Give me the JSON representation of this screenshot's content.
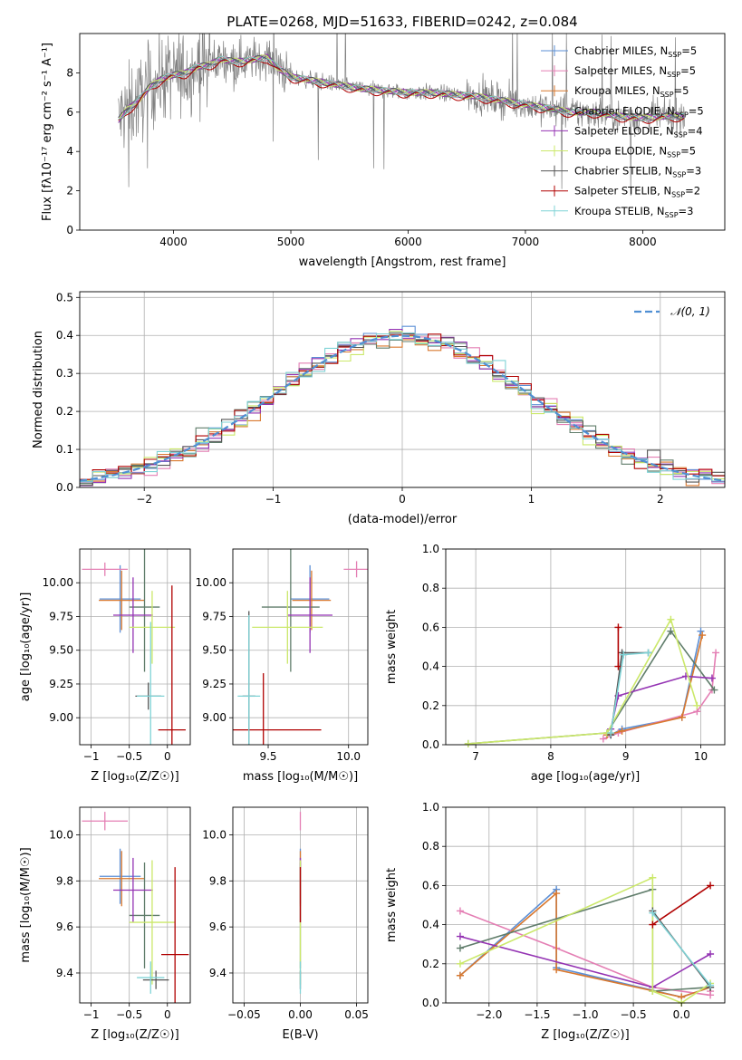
{
  "colors": {
    "chabrier_miles": "#5b8fd6",
    "salpeter_miles": "#e47fb4",
    "kroupa_miles": "#d9782e",
    "chabrier_elodie": "#607d6b",
    "salpeter_elodie": "#9433b3",
    "kroupa_elodie": "#cbe86a",
    "chabrier_stelib": "#555555",
    "salpeter_stelib": "#b00000",
    "kroupa_stelib": "#7fd3d6",
    "data": "#808080",
    "normal": "#4f8fd3",
    "grid": "#b0b0b0"
  },
  "chart_data": [
    {
      "id": "spectrum",
      "type": "line",
      "title": "PLATE=0268, MJD=51633, FIBERID=0242, z=0.084",
      "xlabel": "wavelength [Angstrom, rest frame]",
      "ylabel": "Flux [fλ10⁻¹⁷ erg cm⁻² s⁻¹ A⁻¹]",
      "xlim": [
        3200,
        8700
      ],
      "ylim": [
        0,
        10
      ],
      "xticks": [
        4000,
        5000,
        6000,
        7000,
        8000
      ],
      "yticks": [
        0,
        2,
        4,
        6,
        8
      ],
      "grid": false,
      "legend_position": "top-right",
      "legend": [
        {
          "label": "Chabrier MILES, N_SSP=5",
          "color": "chabrier_miles"
        },
        {
          "label": "Salpeter MILES, N_SSP=5",
          "color": "salpeter_miles"
        },
        {
          "label": "Kroupa MILES, N_SSP=5",
          "color": "kroupa_miles"
        },
        {
          "label": "Chabrier ELODIE, N_SSP=5",
          "color": "chabrier_elodie"
        },
        {
          "label": "Salpeter ELODIE, N_SSP=4",
          "color": "salpeter_elodie"
        },
        {
          "label": "Kroupa ELODIE, N_SSP=5",
          "color": "kroupa_elodie"
        },
        {
          "label": "Chabrier STELIB, N_SSP=3",
          "color": "chabrier_stelib"
        },
        {
          "label": "Salpeter STELIB, N_SSP=2",
          "color": "salpeter_stelib"
        },
        {
          "label": "Kroupa STELIB, N_SSP=3",
          "color": "kroupa_stelib"
        }
      ],
      "continuum": {
        "x": [
          3530,
          3600,
          3700,
          3800,
          3900,
          4000,
          4100,
          4200,
          4300,
          4400,
          4500,
          4600,
          4700,
          4800,
          4900,
          5000,
          5200,
          5400,
          5600,
          5800,
          6000,
          6200,
          6400,
          6600,
          6800,
          7000,
          7200,
          7400,
          7600,
          7800,
          8000,
          8200,
          8350
        ],
        "y": [
          5.6,
          6.1,
          6.6,
          7.3,
          7.7,
          7.9,
          8.0,
          8.3,
          8.4,
          8.7,
          8.6,
          8.6,
          8.7,
          8.8,
          8.2,
          7.8,
          7.6,
          7.4,
          7.2,
          7.1,
          7.0,
          7.0,
          6.9,
          6.8,
          6.6,
          6.4,
          6.2,
          6.0,
          6.0,
          5.8,
          5.7,
          5.8,
          5.8
        ]
      }
    },
    {
      "id": "residuals",
      "type": "step",
      "xlabel": "(data-model)/error",
      "ylabel": "Normed distribution",
      "xlim": [
        -2.5,
        2.5
      ],
      "ylim": [
        0,
        0.515
      ],
      "xticks": [
        -2,
        -1,
        0,
        1,
        2
      ],
      "yticks": [
        0.0,
        0.1,
        0.2,
        0.3,
        0.4,
        0.5
      ],
      "grid": true,
      "legend_position": "top-right",
      "normal_label": "𝒩(0, 1)",
      "bins": {
        "start": -2.5,
        "width": 0.1
      }
    },
    {
      "id": "age-vs-z",
      "type": "errorbar",
      "xlabel": "Z [log₁₀(Z/Z☉)]",
      "ylabel": "age  [log₁₀(age/yr)]",
      "xlim": [
        -1.15,
        0.3
      ],
      "ylim": [
        8.8,
        10.25
      ],
      "xticks": [
        -1,
        -0.5,
        0
      ],
      "yticks": [
        9.0,
        9.25,
        9.5,
        9.75,
        10.0
      ],
      "grid": true,
      "points": [
        {
          "series": "chabrier_miles",
          "x": -0.62,
          "xerr": 0.27,
          "y": 9.88,
          "yerr": 0.25
        },
        {
          "series": "salpeter_miles",
          "x": -0.82,
          "xerr": 0.3,
          "y": 10.1,
          "yerr": 0.05
        },
        {
          "series": "kroupa_miles",
          "x": -0.6,
          "xerr": 0.3,
          "y": 9.87,
          "yerr": 0.22
        },
        {
          "series": "chabrier_elodie",
          "x": -0.3,
          "xerr": 0.2,
          "y": 9.82,
          "yerr": 0.48
        },
        {
          "series": "salpeter_elodie",
          "x": -0.45,
          "xerr": 0.26,
          "y": 9.76,
          "yerr": 0.28
        },
        {
          "series": "kroupa_elodie",
          "x": -0.2,
          "xerr": 0.3,
          "y": 9.67,
          "yerr": 0.27
        },
        {
          "series": "chabrier_stelib",
          "x": -0.25,
          "xerr": 0.17,
          "y": 9.16,
          "yerr": 0.1
        },
        {
          "series": "salpeter_stelib",
          "x": 0.06,
          "xerr": 0.18,
          "y": 8.91,
          "yerr": 1.07
        },
        {
          "series": "kroupa_stelib",
          "x": -0.22,
          "xerr": 0.18,
          "y": 9.16,
          "yerr": 0.55
        }
      ]
    },
    {
      "id": "age-vs-mass",
      "type": "errorbar",
      "xlabel": "mass [log₁₀(M/M☉)]",
      "ylabel": "",
      "xlim": [
        9.28,
        10.12
      ],
      "ylim": [
        8.8,
        10.25
      ],
      "xticks": [
        9.5,
        10.0
      ],
      "yticks": [
        9.0,
        9.25,
        9.5,
        9.75,
        10.0
      ],
      "grid": true,
      "points": [
        {
          "series": "chabrier_miles",
          "x": 9.76,
          "xerr": 0.12,
          "y": 9.88,
          "yerr": 0.25
        },
        {
          "series": "salpeter_miles",
          "x": 10.05,
          "xerr": 0.08,
          "y": 10.1,
          "yerr": 0.06
        },
        {
          "series": "kroupa_miles",
          "x": 9.77,
          "xerr": 0.12,
          "y": 9.87,
          "yerr": 0.22
        },
        {
          "series": "chabrier_elodie",
          "x": 9.64,
          "xerr": 0.18,
          "y": 9.82,
          "yerr": 0.48
        },
        {
          "series": "salpeter_elodie",
          "x": 9.76,
          "xerr": 0.14,
          "y": 9.76,
          "yerr": 0.28
        },
        {
          "series": "kroupa_elodie",
          "x": 9.62,
          "xerr": 0.22,
          "y": 9.67,
          "yerr": 0.27
        },
        {
          "series": "chabrier_stelib",
          "x": 9.38,
          "xerr": 0.04,
          "y": 9.16,
          "yerr": 0.63
        },
        {
          "series": "salpeter_stelib",
          "x": 9.47,
          "xerr": 0.36,
          "y": 8.91,
          "yerr": 0.42
        },
        {
          "series": "kroupa_stelib",
          "x": 9.38,
          "xerr": 0.07,
          "y": 9.16,
          "yerr": 0.6
        }
      ]
    },
    {
      "id": "weight-vs-age",
      "type": "line",
      "xlabel": "age  [log₁₀(age/yr)]",
      "ylabel": "mass weight",
      "xlim": [
        6.6,
        10.32
      ],
      "ylim": [
        0,
        1.0
      ],
      "xticks": [
        7,
        8,
        9,
        10
      ],
      "yticks": [
        0.0,
        0.2,
        0.4,
        0.6,
        0.8,
        1.0
      ],
      "grid": true,
      "series": [
        {
          "name": "Chabrier MILES",
          "color": "chabrier_miles",
          "x": [
            8.8,
            8.95,
            9.75,
            10.0
          ],
          "y": [
            0.05,
            0.08,
            0.14,
            0.58
          ]
        },
        {
          "name": "Salpeter MILES",
          "color": "salpeter_miles",
          "x": [
            8.7,
            8.9,
            9.95,
            10.15,
            10.2
          ],
          "y": [
            0.03,
            0.06,
            0.17,
            0.28,
            0.47
          ]
        },
        {
          "name": "Kroupa MILES",
          "color": "kroupa_miles",
          "x": [
            8.75,
            8.95,
            9.75,
            10.02
          ],
          "y": [
            0.05,
            0.07,
            0.14,
            0.56
          ]
        },
        {
          "name": "Chabrier ELODIE",
          "color": "chabrier_elodie",
          "x": [
            6.9,
            8.75,
            9.6,
            10.18
          ],
          "y": [
            0.005,
            0.06,
            0.58,
            0.28
          ]
        },
        {
          "name": "Salpeter ELODIE",
          "color": "salpeter_elodie",
          "x": [
            8.8,
            8.9,
            9.8,
            10.15
          ],
          "y": [
            0.08,
            0.25,
            0.35,
            0.34
          ]
        },
        {
          "name": "Kroupa ELODIE",
          "color": "kroupa_elodie",
          "x": [
            6.9,
            8.75,
            9.6,
            9.95
          ],
          "y": [
            0.005,
            0.06,
            0.64,
            0.2
          ]
        },
        {
          "name": "Chabrier STELIB",
          "color": "chabrier_stelib",
          "x": [
            8.8,
            8.95,
            9.3
          ],
          "y": [
            0.05,
            0.47,
            0.47
          ]
        },
        {
          "name": "Salpeter STELIB",
          "color": "salpeter_stelib",
          "x": [
            8.9,
            8.9
          ],
          "y": [
            0.4,
            0.6
          ]
        },
        {
          "name": "Kroupa STELIB",
          "color": "kroupa_stelib",
          "x": [
            8.8,
            8.97,
            9.3
          ],
          "y": [
            0.06,
            0.46,
            0.47
          ]
        }
      ]
    },
    {
      "id": "mass-vs-z",
      "type": "errorbar",
      "xlabel": "Z [log₁₀(Z/Z☉)]",
      "ylabel": "mass [log₁₀(M/M☉)]",
      "xlim": [
        -1.15,
        0.3
      ],
      "ylim": [
        9.27,
        10.12
      ],
      "xticks": [
        -1,
        -0.5,
        0
      ],
      "yticks": [
        9.4,
        9.6,
        9.8,
        10.0
      ],
      "grid": true,
      "points": [
        {
          "series": "chabrier_miles",
          "x": -0.62,
          "xerr": 0.27,
          "y": 9.82,
          "yerr": 0.12
        },
        {
          "series": "salpeter_miles",
          "x": -0.82,
          "xerr": 0.3,
          "y": 10.06,
          "yerr": 0.04
        },
        {
          "series": "kroupa_miles",
          "x": -0.6,
          "xerr": 0.3,
          "y": 9.81,
          "yerr": 0.12
        },
        {
          "series": "chabrier_elodie",
          "x": -0.3,
          "xerr": 0.2,
          "y": 9.65,
          "yerr": 0.23
        },
        {
          "series": "salpeter_elodie",
          "x": -0.45,
          "xerr": 0.26,
          "y": 9.76,
          "yerr": 0.14
        },
        {
          "series": "kroupa_elodie",
          "x": -0.2,
          "xerr": 0.3,
          "y": 9.62,
          "yerr": 0.27
        },
        {
          "series": "chabrier_stelib",
          "x": -0.15,
          "xerr": 0.17,
          "y": 9.37,
          "yerr": 0.04
        },
        {
          "series": "salpeter_stelib",
          "x": 0.1,
          "xerr": 0.18,
          "y": 9.48,
          "yerr": 0.38
        },
        {
          "series": "kroupa_stelib",
          "x": -0.22,
          "xerr": 0.18,
          "y": 9.38,
          "yerr": 0.07
        }
      ]
    },
    {
      "id": "mass-vs-ebv",
      "type": "errorbar",
      "xlabel": "E(B-V)",
      "ylabel": "",
      "xlim": [
        -0.06,
        0.06
      ],
      "ylim": [
        9.27,
        10.12
      ],
      "xticks": [
        -0.05,
        0.0,
        0.05
      ],
      "yticks": [
        9.4,
        9.6,
        9.8,
        10.0
      ],
      "grid": true,
      "points": [
        {
          "series": "chabrier_miles",
          "x": 0,
          "xerr": 0,
          "y": 9.82,
          "yerr": 0.12
        },
        {
          "series": "salpeter_miles",
          "x": 0,
          "xerr": 0,
          "y": 10.06,
          "yerr": 0.04
        },
        {
          "series": "kroupa_miles",
          "x": 0,
          "xerr": 0,
          "y": 9.81,
          "yerr": 0.12
        },
        {
          "series": "chabrier_elodie",
          "x": 0,
          "xerr": 0,
          "y": 9.65,
          "yerr": 0.23
        },
        {
          "series": "salpeter_elodie",
          "x": 0,
          "xerr": 0,
          "y": 9.76,
          "yerr": 0.14
        },
        {
          "series": "kroupa_elodie",
          "x": 0,
          "xerr": 0,
          "y": 9.62,
          "yerr": 0.27
        },
        {
          "series": "chabrier_stelib",
          "x": 0,
          "xerr": 0,
          "y": 9.37,
          "yerr": 0.04
        },
        {
          "series": "salpeter_stelib",
          "x": 0,
          "xerr": 0,
          "y": 9.74,
          "yerr": 0.12
        },
        {
          "series": "kroupa_stelib",
          "x": 0,
          "xerr": 0,
          "y": 9.38,
          "yerr": 0.07
        }
      ]
    },
    {
      "id": "weight-vs-z",
      "type": "line",
      "xlabel": "Z [log₁₀(Z/Z☉)]",
      "ylabel": "mass weight",
      "xlim": [
        -2.45,
        0.45
      ],
      "ylim": [
        0,
        1.0
      ],
      "xticks": [
        -2.0,
        -1.5,
        -1.0,
        -0.5,
        0.0
      ],
      "yticks": [
        0.0,
        0.2,
        0.4,
        0.6,
        0.8,
        1.0
      ],
      "grid": true,
      "series": [
        {
          "name": "Chabrier MILES",
          "color": "chabrier_miles",
          "x": [
            -2.3,
            -1.3,
            -1.3,
            0.0,
            0.3
          ],
          "y": [
            0.14,
            0.58,
            0.18,
            0.03,
            0.08
          ]
        },
        {
          "name": "Salpeter MILES",
          "color": "salpeter_miles",
          "x": [
            -2.3,
            -1.3,
            -0.3,
            0.3,
            0.3
          ],
          "y": [
            0.47,
            0.28,
            0.08,
            0.04,
            0.06
          ]
        },
        {
          "name": "Kroupa MILES",
          "color": "kroupa_miles",
          "x": [
            -2.3,
            -1.3,
            -1.3,
            0.0,
            0.3
          ],
          "y": [
            0.14,
            0.56,
            0.17,
            0.03,
            0.08
          ]
        },
        {
          "name": "Chabrier ELODIE",
          "color": "chabrier_elodie",
          "x": [
            -2.3,
            -0.3,
            -0.3,
            0.3
          ],
          "y": [
            0.28,
            0.58,
            0.06,
            0.08
          ]
        },
        {
          "name": "Salpeter ELODIE",
          "color": "salpeter_elodie",
          "x": [
            -2.3,
            -0.3,
            0.3
          ],
          "y": [
            0.34,
            0.08,
            0.25
          ]
        },
        {
          "name": "Kroupa ELODIE",
          "color": "kroupa_elodie",
          "x": [
            -2.3,
            -0.3,
            -0.3,
            0.0,
            0.3
          ],
          "y": [
            0.2,
            0.64,
            0.06,
            0.0,
            0.1
          ]
        },
        {
          "name": "Chabrier STELIB",
          "color": "chabrier_stelib",
          "x": [
            -0.3,
            0.3
          ],
          "y": [
            0.47,
            0.08
          ]
        },
        {
          "name": "Salpeter STELIB",
          "color": "salpeter_stelib",
          "x": [
            -0.3,
            0.3
          ],
          "y": [
            0.4,
            0.6
          ]
        },
        {
          "name": "Kroupa STELIB",
          "color": "kroupa_stelib",
          "x": [
            -0.3,
            0.3
          ],
          "y": [
            0.46,
            0.09
          ]
        }
      ]
    }
  ]
}
